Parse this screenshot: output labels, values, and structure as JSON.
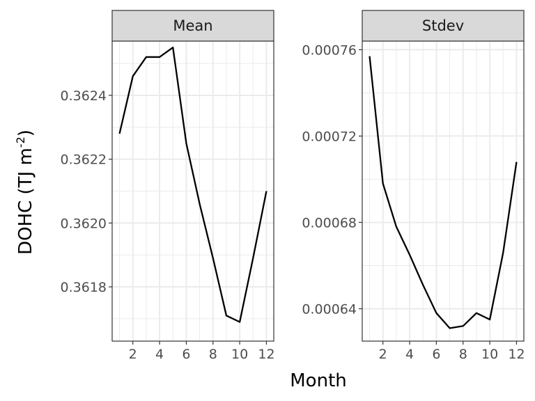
{
  "chart_data": {
    "type": "line",
    "xlabel": "Month",
    "ylabel_main": "DOHC (TJ m",
    "ylabel_sup": "-2",
    "ylabel_close": ")",
    "grid": true,
    "x_ticks": [
      2,
      4,
      6,
      8,
      10,
      12
    ],
    "x_tick_labels": [
      "2",
      "4",
      "6",
      "8",
      "10",
      "12"
    ],
    "xlim": [
      0.45,
      12.55
    ],
    "colors": {
      "line": "#000000",
      "strip_fill": "#d9d9d9",
      "grid": "#ebebeb",
      "panel_border": "#333333"
    },
    "panels": [
      {
        "strip": "Mean",
        "ylim": [
          0.36163,
          0.36257
        ],
        "y_ticks": [
          0.3618,
          0.362,
          0.3622,
          0.3624
        ],
        "y_tick_labels": [
          "0.3618",
          "0.3620",
          "0.3622",
          "0.3624"
        ],
        "x": [
          1,
          2,
          3,
          4,
          5,
          6,
          7,
          8,
          9,
          10,
          11,
          12
        ],
        "values": [
          0.36228,
          0.36246,
          0.36252,
          0.36252,
          0.36255,
          0.36225,
          0.36206,
          0.36189,
          0.36171,
          0.36169,
          0.36189,
          0.3621
        ]
      },
      {
        "strip": "Stdev",
        "ylim": [
          0.000625,
          0.000764
        ],
        "y_ticks": [
          0.00064,
          0.00068,
          0.00072,
          0.00076
        ],
        "y_tick_labels": [
          "0.00064",
          "0.00068",
          "0.00072",
          "0.00076"
        ],
        "x": [
          1,
          2,
          3,
          4,
          5,
          6,
          7,
          8,
          9,
          10,
          11,
          12
        ],
        "values": [
          0.000757,
          0.000698,
          0.000678,
          0.000665,
          0.000651,
          0.000638,
          0.000631,
          0.000632,
          0.000638,
          0.000635,
          0.000666,
          0.000708
        ]
      }
    ]
  }
}
